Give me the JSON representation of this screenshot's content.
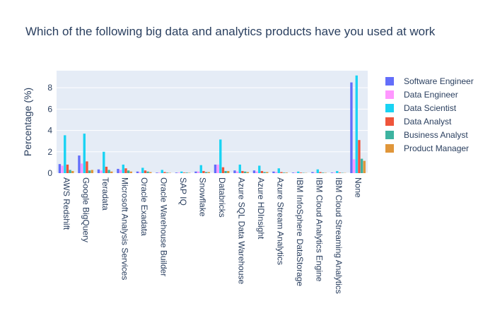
{
  "chart_data": {
    "type": "bar",
    "title": "Which of the following big data and analytics products have you used at work",
    "xlabel": "",
    "ylabel": "Percentage (%)",
    "ylim": [
      0,
      9.6
    ],
    "yticks": [
      0,
      2,
      4,
      6,
      8
    ],
    "grid": true,
    "legend_position": "right",
    "categories": [
      "AWS Redshift",
      "Google BigQuery",
      "Teradata",
      "Microsoft Analysis Services",
      "Oracle Exadata",
      "Oracle Warehouse Builder",
      "SAP IQ",
      "Snowflake",
      "Databricks",
      "Azure SQL Data Warehouse",
      "Azure HDInsight",
      "Azure Stream Analytics",
      "IBM InfoSphere DataStorage",
      "IBM Cloud Analytics Engine",
      "IBM Cloud Streaming Analytics",
      "None"
    ],
    "series": [
      {
        "name": "Software Engineer",
        "color": "#636efa",
        "values": [
          0.85,
          1.65,
          0.35,
          0.4,
          0.15,
          0.05,
          0.05,
          0.15,
          0.8,
          0.25,
          0.25,
          0.15,
          0.05,
          0.1,
          0.05,
          8.5
        ]
      },
      {
        "name": "Data Engineer",
        "color": "#ff97ff",
        "values": [
          0.7,
          0.9,
          0.25,
          0.3,
          0.1,
          0.05,
          0.05,
          0.15,
          0.8,
          0.15,
          0.15,
          0.1,
          0.05,
          0.05,
          0.05,
          1.3
        ]
      },
      {
        "name": "Data Scientist",
        "color": "#19d3f3",
        "values": [
          3.55,
          3.7,
          2.0,
          0.8,
          0.5,
          0.3,
          0.15,
          0.75,
          3.15,
          0.8,
          0.7,
          0.45,
          0.15,
          0.35,
          0.2,
          9.15
        ]
      },
      {
        "name": "Data Analyst",
        "color": "#ef553b",
        "values": [
          0.8,
          1.1,
          0.6,
          0.45,
          0.25,
          0.1,
          0.05,
          0.2,
          0.55,
          0.2,
          0.2,
          0.1,
          0.05,
          0.1,
          0.05,
          3.1
        ]
      },
      {
        "name": "Business Analyst",
        "color": "#3db3a0",
        "values": [
          0.3,
          0.25,
          0.3,
          0.25,
          0.15,
          0.05,
          0.05,
          0.1,
          0.2,
          0.15,
          0.1,
          0.05,
          0.03,
          0.05,
          0.03,
          1.35
        ]
      },
      {
        "name": "Product Manager",
        "color": "#e0963a",
        "values": [
          0.2,
          0.3,
          0.15,
          0.15,
          0.1,
          0.03,
          0.03,
          0.1,
          0.2,
          0.1,
          0.1,
          0.05,
          0.02,
          0.03,
          0.02,
          1.15
        ]
      }
    ]
  }
}
